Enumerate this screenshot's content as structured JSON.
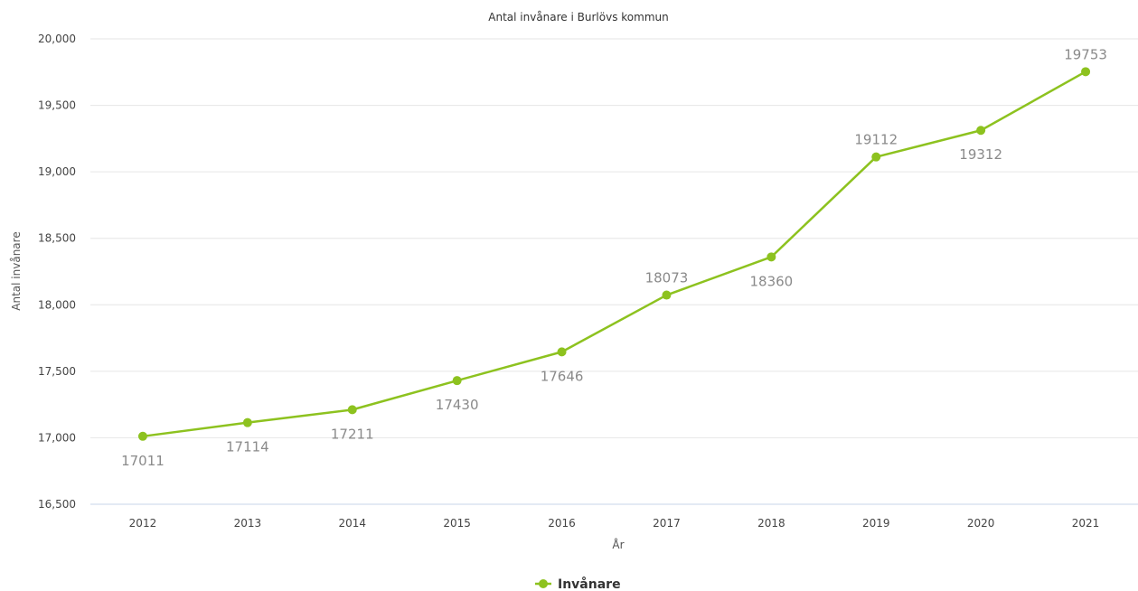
{
  "chart_data": {
    "type": "line",
    "title": "Antal invånare i Burlövs kommun",
    "xlabel": "År",
    "ylabel": "Antal invånare",
    "categories": [
      "2012",
      "2013",
      "2014",
      "2015",
      "2016",
      "2017",
      "2018",
      "2019",
      "2020",
      "2021"
    ],
    "series": [
      {
        "name": "Invånare",
        "color": "#8dc21f",
        "values": [
          17011,
          17114,
          17211,
          17430,
          17646,
          18073,
          18360,
          19112,
          19312,
          19753
        ]
      }
    ],
    "data_labels": [
      "17011",
      "17114",
      "17211",
      "17430",
      "17646",
      "18073",
      "18360",
      "19112",
      "19312",
      "19753"
    ],
    "ylim": [
      16500,
      20000
    ],
    "yticks": [
      16500,
      17000,
      17500,
      18000,
      18500,
      19000,
      19500,
      20000
    ],
    "ytick_labels": [
      "16,500",
      "17,000",
      "17,500",
      "18,000",
      "18,500",
      "19,000",
      "19,500",
      "20,000"
    ],
    "grid": true,
    "legend_position": "bottom-center"
  }
}
